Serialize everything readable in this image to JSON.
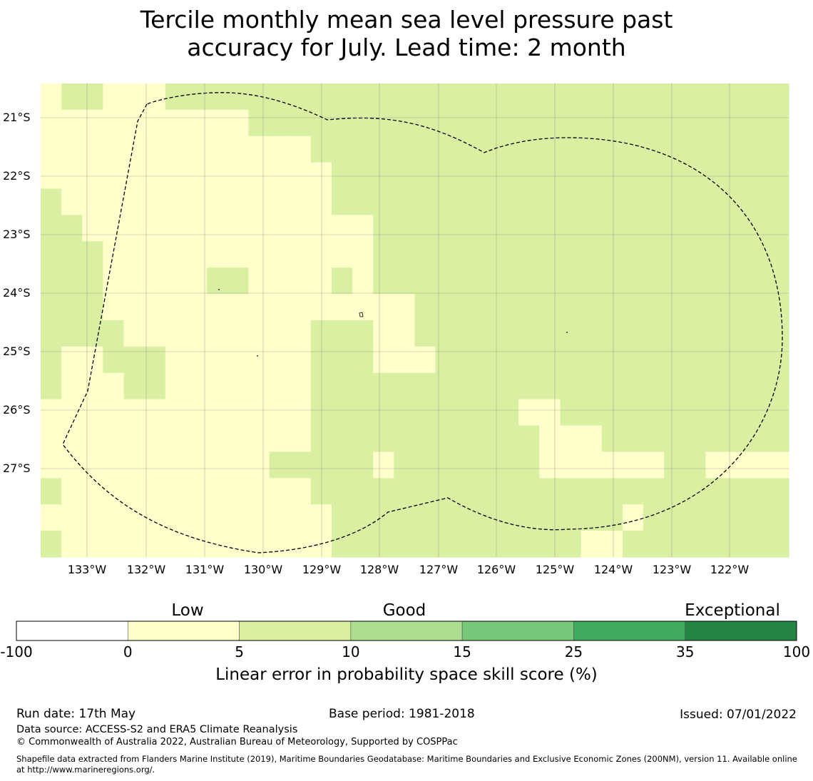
{
  "title": {
    "line1": "Tercile monthly mean sea level pressure past",
    "line2": "accuracy for July. Lead time: 2 month"
  },
  "map": {
    "lat_ticks": [
      "21°S",
      "22°S",
      "23°S",
      "24°S",
      "25°S",
      "26°S",
      "27°S"
    ],
    "lon_ticks": [
      "133°W",
      "132°W",
      "131°W",
      "130°W",
      "129°W",
      "128°W",
      "127°W",
      "126°W",
      "125°W",
      "124°W",
      "123°W",
      "122°W"
    ],
    "skill_grid": [
      "011000111111111111111111111111111111",
      "000000000011111111111111111111111111",
      "000000000000011111111111111111111111",
      "000000000000001111111111111111111111",
      "100000000000001111111111111111111111",
      "110000000000000011111111111111111111",
      "111000000000000011111111111111111111",
      "111000001100001011111111111111111111",
      "111000000000000000111111111111111111",
      "111100000000011100111111111111111111",
      "100111000000011100011111111111111111",
      "100011000000011111111111111111111111",
      "000000000000011111111110011111111111",
      "000000000000011111111111000111111111",
      "000000000001111101111111000000110000",
      "100000000000011111111111111111111111",
      "000000000000001111111111111101111111",
      "100000000000001111111111110011111111"
    ],
    "legend_categories": {
      "0": "0 to 5",
      "1": "5 to 10"
    },
    "colors": {
      "low": "#ffffcc",
      "low_good": "#d9f0a3",
      "ocean_gridline": "#8c8c7a",
      "boundary": "#000000"
    }
  },
  "colorbar": {
    "category_labels": [
      "Low",
      "Good",
      "Exceptional"
    ],
    "ticks": [
      "-100",
      "0",
      "5",
      "10",
      "15",
      "25",
      "35",
      "100"
    ],
    "colors": [
      "#ffffff",
      "#ffffcc",
      "#d9f0a3",
      "#addd8e",
      "#78c679",
      "#41ab5d",
      "#238443"
    ],
    "title": "Linear error in probability space skill score (%)"
  },
  "footer": {
    "run_date": "Run date: 17th May",
    "base_period": "Base period: 1981-2018",
    "issued": "Issued: 07/01/2022",
    "data_source": "Data source: ACCESS-S2 and ERA5 Climate Reanalysis",
    "copyright": "© Commonwealth of Australia 2022, Australian Bureau of Meteorology, Supported by COSPPac",
    "shapefile": "Shapefile data extracted from Flanders Marine Institute (2019), Maritime Boundaries Geodatabase: Maritime Boundaries and Exclusive Economic Zones (200NM), version 11. Available online at http://www.marineregions.org/."
  }
}
